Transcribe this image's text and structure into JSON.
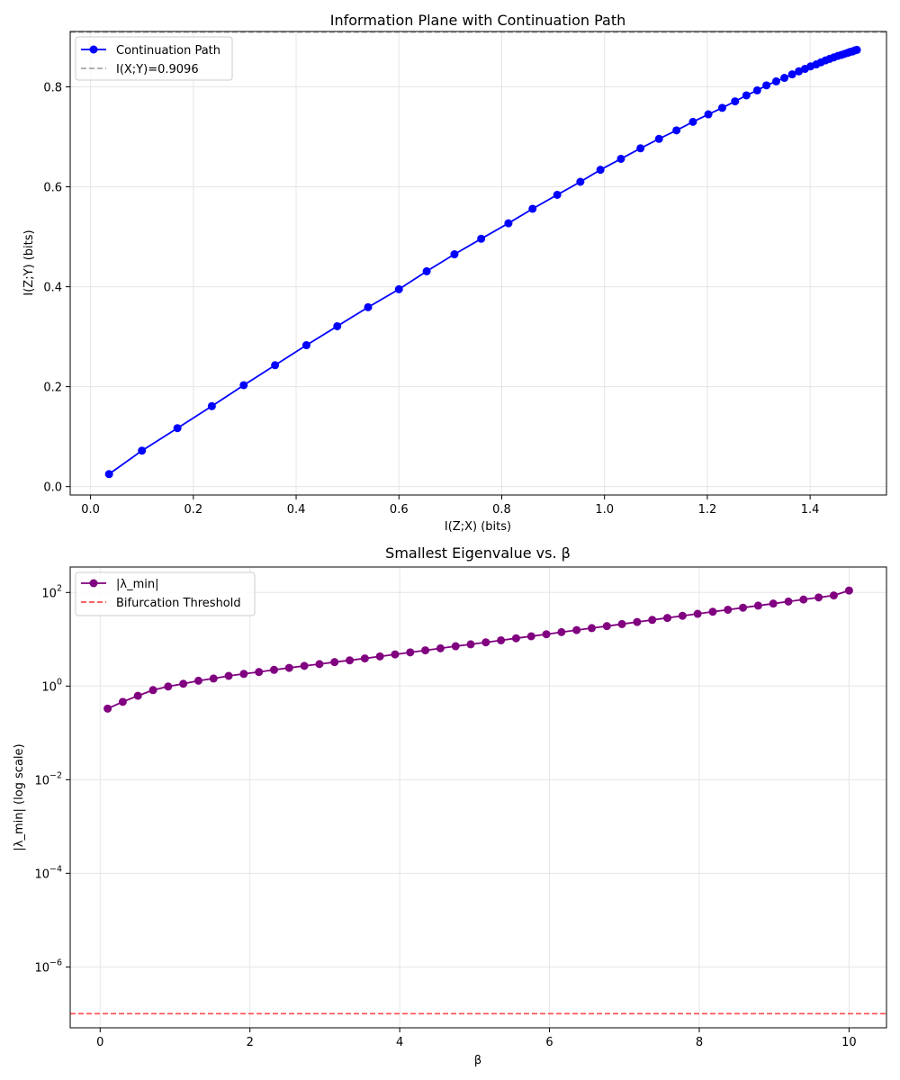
{
  "chart_data": [
    {
      "type": "line",
      "title": "Information Plane with Continuation Path",
      "xlabel": "I(Z;X) (bits)",
      "ylabel": "I(Z;Y) (bits)",
      "xlim": [
        -0.0396,
        1.5486
      ],
      "ylim": [
        -0.0168,
        0.9108
      ],
      "x_ticks": [
        0.0,
        0.2,
        0.4,
        0.6,
        0.8,
        1.0,
        1.2,
        1.4
      ],
      "x_tick_labels": [
        "0.0",
        "0.2",
        "0.4",
        "0.6",
        "0.8",
        "1.0",
        "1.2",
        "1.4"
      ],
      "y_ticks": [
        0.0,
        0.2,
        0.4,
        0.6,
        0.8
      ],
      "y_tick_labels": [
        "0.0",
        "0.2",
        "0.4",
        "0.6",
        "0.8"
      ],
      "grid": true,
      "legend_position": "top-left",
      "series": [
        {
          "name": "Continuation Path",
          "color": "#0000ff",
          "marker": "circle",
          "x": [
            0.036,
            0.1,
            0.169,
            0.236,
            0.298,
            0.359,
            0.42,
            0.48,
            0.54,
            0.6,
            0.654,
            0.708,
            0.76,
            0.813,
            0.86,
            0.908,
            0.953,
            0.992,
            1.032,
            1.07,
            1.106,
            1.14,
            1.172,
            1.202,
            1.229,
            1.254,
            1.276,
            1.297,
            1.315,
            1.334,
            1.35,
            1.365,
            1.378,
            1.39,
            1.401,
            1.412,
            1.421,
            1.43,
            1.438,
            1.446,
            1.454,
            1.461,
            1.467,
            1.473,
            1.478,
            1.483,
            1.487,
            1.491
          ],
          "y": [
            0.025,
            0.072,
            0.117,
            0.161,
            0.203,
            0.243,
            0.283,
            0.321,
            0.359,
            0.395,
            0.431,
            0.465,
            0.496,
            0.527,
            0.556,
            0.584,
            0.61,
            0.634,
            0.656,
            0.677,
            0.696,
            0.713,
            0.73,
            0.745,
            0.758,
            0.771,
            0.783,
            0.793,
            0.803,
            0.811,
            0.818,
            0.825,
            0.831,
            0.836,
            0.841,
            0.845,
            0.849,
            0.853,
            0.856,
            0.859,
            0.862,
            0.864,
            0.866,
            0.868,
            0.87,
            0.871,
            0.873,
            0.874
          ]
        },
        {
          "name": "I(X;Y)=0.9096",
          "color": "#a8a8a8",
          "style": "dashed",
          "hline": 0.9096
        }
      ]
    },
    {
      "type": "line",
      "title": "Smallest Eigenvalue vs. β",
      "xlabel": "β",
      "ylabel": "|λ_min| (log scale)",
      "yscale": "log",
      "xlim": [
        -0.4,
        10.5
      ],
      "ylim": [
        5e-08,
        350
      ],
      "x_ticks": [
        0,
        2,
        4,
        6,
        8,
        10
      ],
      "x_tick_labels": [
        "0",
        "2",
        "4",
        "6",
        "8",
        "10"
      ],
      "y_ticks": [
        1e-06,
        0.0001,
        0.01,
        1,
        100
      ],
      "y_tick_mantissa": "10",
      "y_tick_exponents": [
        "−6",
        "−4",
        "−2",
        "0",
        "2"
      ],
      "grid": true,
      "legend_position": "top-left",
      "series": [
        {
          "name": "|λ_min|",
          "color": "#800080",
          "marker": "circle",
          "x": [
            0.1,
            0.302,
            0.504,
            0.706,
            0.908,
            1.11,
            1.312,
            1.514,
            1.716,
            1.918,
            2.12,
            2.322,
            2.524,
            2.726,
            2.928,
            3.13,
            3.332,
            3.534,
            3.736,
            3.938,
            4.14,
            4.342,
            4.544,
            4.746,
            4.948,
            5.15,
            5.352,
            5.554,
            5.756,
            5.958,
            6.16,
            6.362,
            6.564,
            6.766,
            6.968,
            7.17,
            7.372,
            7.574,
            7.776,
            7.978,
            8.18,
            8.382,
            8.584,
            8.786,
            8.988,
            9.19,
            9.392,
            9.594,
            9.796,
            10.0
          ],
          "y": [
            0.33,
            0.46,
            0.62,
            0.82,
            0.98,
            1.12,
            1.3,
            1.45,
            1.65,
            1.82,
            2.0,
            2.22,
            2.45,
            2.7,
            2.95,
            3.25,
            3.55,
            3.9,
            4.3,
            4.75,
            5.25,
            5.8,
            6.4,
            7.1,
            7.8,
            8.6,
            9.5,
            10.5,
            11.6,
            12.8,
            14.2,
            15.7,
            17.3,
            19.1,
            21.1,
            23.4,
            25.9,
            28.6,
            31.7,
            35.0,
            38.7,
            42.8,
            47.3,
            52.3,
            57.8,
            64.0,
            70.7,
            78.2,
            86.5,
            110.0
          ]
        },
        {
          "name": "Bifurcation Threshold",
          "color": "#ff0000",
          "style": "dashed",
          "hline": 1e-07
        }
      ]
    }
  ]
}
